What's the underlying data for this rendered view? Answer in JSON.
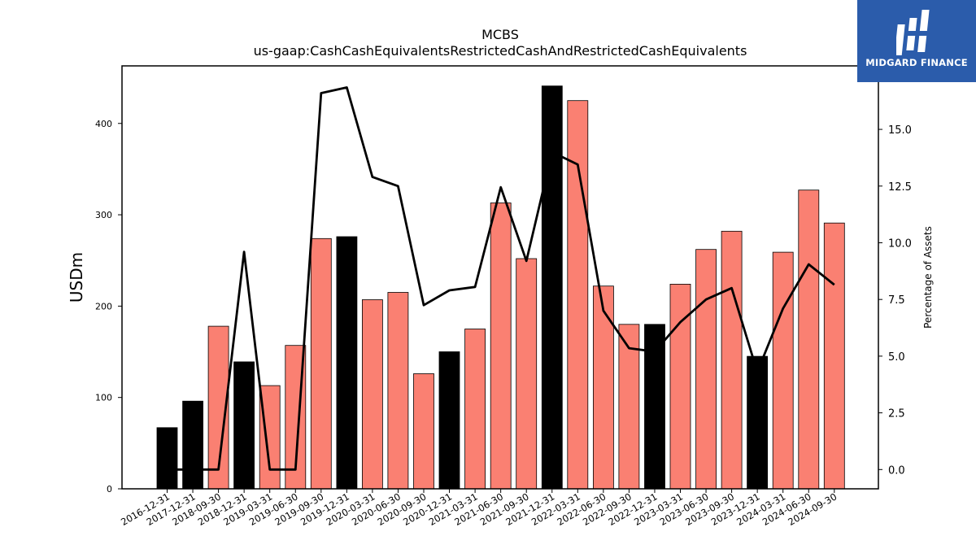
{
  "chart_data": {
    "type": "bar",
    "title": "MCBS",
    "subtitle": "us-gaap:CashCashEquivalentsRestrictedCashAndRestrictedCashEquivalents",
    "ylabel": "USDm",
    "y2label": "Percentage of Assets",
    "ylim": [
      0,
      463
    ],
    "y2lim": [
      -0.85,
      17.8
    ],
    "yticks": [
      0,
      100,
      200,
      300,
      400
    ],
    "y2ticks": [
      0.0,
      2.5,
      5.0,
      7.5,
      10.0,
      12.5,
      15.0
    ],
    "categories": [
      "2016-12-31",
      "2017-12-31",
      "2018-09-30",
      "2018-12-31",
      "2019-03-31",
      "2019-06-30",
      "2019-09-30",
      "2019-12-31",
      "2020-03-31",
      "2020-06-30",
      "2020-09-30",
      "2020-12-31",
      "2021-03-31",
      "2021-06-30",
      "2021-09-30",
      "2021-12-31",
      "2022-03-31",
      "2022-06-30",
      "2022-09-30",
      "2022-12-31",
      "2023-03-31",
      "2023-06-30",
      "2023-09-30",
      "2023-12-31",
      "2024-03-31",
      "2024-06-30",
      "2024-09-30"
    ],
    "series": [
      {
        "values": [
          67,
          96,
          178,
          139,
          113,
          157,
          274,
          276,
          207,
          215,
          126,
          150,
          175,
          313,
          252,
          441,
          425,
          222,
          180,
          180,
          224,
          262,
          282,
          145,
          259,
          327,
          291
        ],
        "colors": [
          "#000000",
          "#000000",
          "#fa8072",
          "#000000",
          "#fa8072",
          "#fa8072",
          "#fa8072",
          "#000000",
          "#fa8072",
          "#fa8072",
          "#fa8072",
          "#000000",
          "#fa8072",
          "#fa8072",
          "#fa8072",
          "#000000",
          "#fa8072",
          "#fa8072",
          "#fa8072",
          "#000000",
          "#fa8072",
          "#fa8072",
          "#fa8072",
          "#000000",
          "#fa8072",
          "#fa8072",
          "#fa8072"
        ]
      },
      {
        "type": "line",
        "axis": "right",
        "values": [
          0.0,
          0.0,
          0.0,
          9.6,
          0.0,
          0.0,
          16.6,
          16.85,
          12.9,
          12.5,
          7.25,
          7.9,
          8.05,
          12.45,
          9.2,
          14.0,
          13.45,
          7.0,
          5.35,
          5.2,
          6.5,
          7.5,
          8.0,
          4.3,
          7.1,
          9.05,
          8.15
        ],
        "color": "#000000"
      }
    ],
    "bar_colors": {
      "annual": "#000000",
      "quarterly": "#fa8072"
    },
    "grid": false
  },
  "logo": {
    "text": "MIDGARD FINANCE",
    "background": "#2b5cab"
  }
}
